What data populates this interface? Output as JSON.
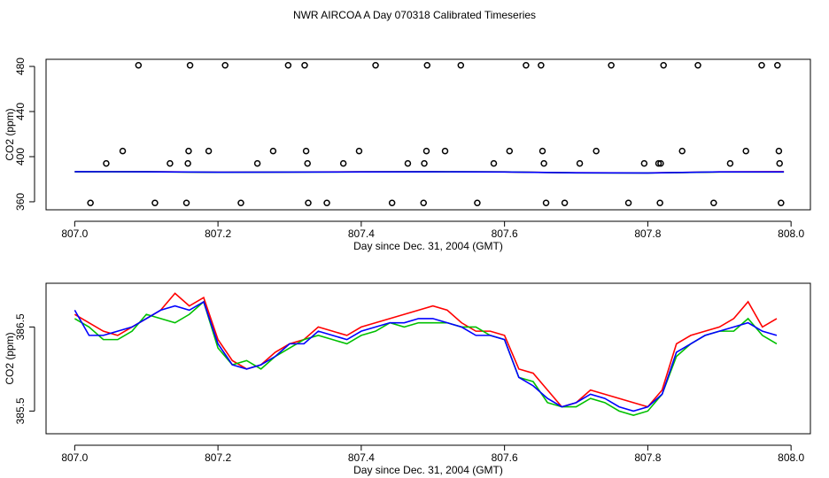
{
  "chart_data": [
    {
      "type": "scatter",
      "title": "NWR AIRCOA A  Day 070318  Calibrated Timeseries",
      "x_label": "Day since Dec. 31, 2004 (GMT)",
      "y_label": "CO2 (ppm)",
      "xlim": [
        806.96,
        808.027
      ],
      "ylim": [
        352.9,
        486.3
      ],
      "xticks": [
        {
          "value": 807,
          "label": "807.0"
        },
        807.2,
        807.4,
        807.6,
        807.8,
        {
          "value": 808,
          "label": "808.0"
        }
      ],
      "yticks": [
        360,
        400,
        440,
        480
      ],
      "series": [
        {
          "type": "scatter",
          "color": "#000000",
          "x": [
            807.022,
            807.112,
            807.156,
            807.232,
            807.326,
            807.352,
            807.443,
            807.487,
            807.562,
            807.658,
            807.684,
            807.773,
            807.817,
            807.892,
            807.986,
            807.044,
            807.133,
            807.158,
            807.255,
            807.325,
            807.375,
            807.465,
            807.488,
            807.585,
            807.655,
            807.705,
            807.795,
            807.815,
            807.818,
            807.915,
            807.984,
            807.067,
            807.159,
            807.187,
            807.277,
            807.323,
            807.397,
            807.491,
            807.517,
            807.607,
            807.653,
            807.728,
            807.848,
            807.937,
            807.983,
            807.089,
            807.161,
            807.21,
            807.298,
            807.321,
            807.42,
            807.492,
            807.539,
            807.63,
            807.651,
            807.749,
            807.822,
            807.87,
            807.959,
            807.981
          ],
          "values": [
            359,
            359,
            359,
            359,
            359,
            359,
            359,
            359,
            359,
            359,
            359,
            359,
            359,
            359,
            359,
            394,
            394,
            394,
            394,
            394,
            394,
            394,
            394,
            394,
            394,
            394,
            394,
            394,
            394,
            394,
            394,
            405,
            405,
            405,
            405,
            405,
            405,
            405,
            405,
            405,
            405,
            405,
            405,
            405,
            405,
            481,
            481,
            481,
            481,
            481,
            481,
            481,
            481,
            481,
            481,
            481,
            481,
            481,
            481,
            481
          ]
        },
        {
          "type": "line",
          "color": "#ff0000",
          "x": [
            807.0,
            807.1,
            807.2,
            807.3,
            807.4,
            807.5,
            807.6,
            807.7,
            807.8,
            807.9,
            807.99
          ],
          "values": [
            386.6,
            386.7,
            386.2,
            386.4,
            386.6,
            386.7,
            386.5,
            385.7,
            385.6,
            386.5,
            386.7
          ]
        },
        {
          "type": "line",
          "color": "#00c000",
          "x": [
            807.0,
            807.1,
            807.2,
            807.3,
            807.4,
            807.5,
            807.6,
            807.7,
            807.8,
            807.9,
            807.99
          ],
          "values": [
            386.6,
            386.6,
            386.1,
            386.3,
            386.5,
            386.6,
            386.5,
            385.6,
            385.5,
            386.4,
            386.4
          ]
        },
        {
          "type": "line",
          "color": "#0000ff",
          "x": [
            807.0,
            807.1,
            807.2,
            807.3,
            807.4,
            807.5,
            807.6,
            807.7,
            807.8,
            807.9,
            807.99
          ],
          "values": [
            386.7,
            386.6,
            386.2,
            386.3,
            386.5,
            386.6,
            386.4,
            385.7,
            385.5,
            386.5,
            386.5
          ]
        }
      ]
    },
    {
      "type": "line",
      "x_label": "Day since Dec. 31, 2004 (GMT)",
      "y_label": "CO2 (ppm)",
      "xlim": [
        806.96,
        808.027
      ],
      "ylim": [
        385.23,
        387.02
      ],
      "xticks": [
        {
          "value": 807,
          "label": "807.0"
        },
        807.2,
        807.4,
        807.6,
        807.8,
        {
          "value": 808,
          "label": "808.0"
        }
      ],
      "yticks": [
        385.5,
        386.5
      ],
      "x": [
        807.0,
        807.02,
        807.04,
        807.06,
        807.08,
        807.1,
        807.12,
        807.14,
        807.16,
        807.18,
        807.2,
        807.22,
        807.24,
        807.26,
        807.28,
        807.3,
        807.32,
        807.34,
        807.36,
        807.38,
        807.4,
        807.42,
        807.44,
        807.46,
        807.48,
        807.5,
        807.52,
        807.54,
        807.56,
        807.58,
        807.6,
        807.62,
        807.64,
        807.66,
        807.68,
        807.7,
        807.72,
        807.74,
        807.76,
        807.78,
        807.8,
        807.82,
        807.84,
        807.86,
        807.88,
        807.9,
        807.92,
        807.94,
        807.96,
        807.98
      ],
      "series": [
        {
          "color": "#ff0000",
          "values": [
            386.65,
            386.55,
            386.45,
            386.4,
            386.5,
            386.6,
            386.7,
            386.9,
            386.75,
            386.85,
            386.35,
            386.1,
            386.0,
            386.05,
            386.2,
            386.3,
            386.35,
            386.5,
            386.45,
            386.4,
            386.5,
            386.55,
            386.6,
            386.65,
            386.7,
            386.75,
            386.7,
            386.55,
            386.45,
            386.45,
            386.4,
            386.0,
            385.95,
            385.75,
            385.55,
            385.6,
            385.75,
            385.7,
            385.65,
            385.6,
            385.55,
            385.75,
            386.3,
            386.4,
            386.45,
            386.5,
            386.6,
            386.8,
            386.5,
            386.6
          ]
        },
        {
          "color": "#00c000",
          "values": [
            386.6,
            386.5,
            386.35,
            386.35,
            386.45,
            386.65,
            386.6,
            386.55,
            386.65,
            386.8,
            386.25,
            386.05,
            386.1,
            386.0,
            386.15,
            386.25,
            386.35,
            386.4,
            386.35,
            386.3,
            386.4,
            386.45,
            386.55,
            386.5,
            386.55,
            386.55,
            386.55,
            386.5,
            386.5,
            386.4,
            386.35,
            385.9,
            385.85,
            385.6,
            385.55,
            385.55,
            385.65,
            385.6,
            385.5,
            385.45,
            385.5,
            385.7,
            386.15,
            386.3,
            386.4,
            386.45,
            386.45,
            386.6,
            386.4,
            386.3
          ]
        },
        {
          "color": "#0000ff",
          "values": [
            386.7,
            386.4,
            386.4,
            386.45,
            386.5,
            386.6,
            386.7,
            386.75,
            386.7,
            386.8,
            386.3,
            386.05,
            386.0,
            386.05,
            386.15,
            386.3,
            386.3,
            386.45,
            386.4,
            386.35,
            386.45,
            386.5,
            386.55,
            386.55,
            386.6,
            386.6,
            386.55,
            386.5,
            386.4,
            386.4,
            386.35,
            385.9,
            385.8,
            385.65,
            385.55,
            385.6,
            385.7,
            385.65,
            385.55,
            385.5,
            385.55,
            385.7,
            386.2,
            386.3,
            386.4,
            386.45,
            386.5,
            386.55,
            386.45,
            386.4
          ]
        }
      ]
    }
  ]
}
